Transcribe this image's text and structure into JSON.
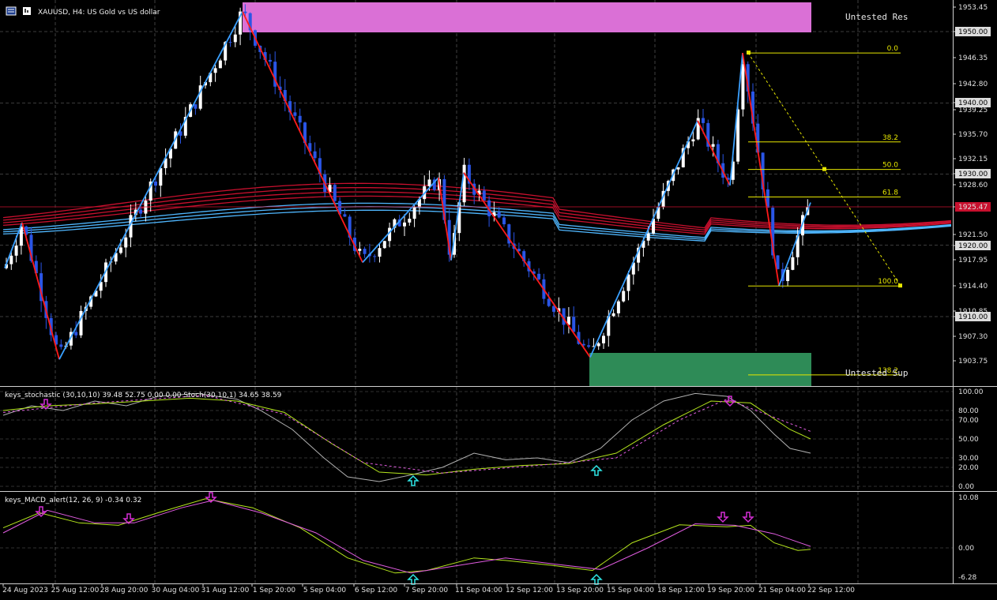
{
  "header": {
    "symbol": "XAUUSD",
    "timeframe": "H4",
    "description": "US Gold vs US dollar",
    "title": "XAUUSD, H4:  US Gold vs US dollar"
  },
  "zones": {
    "resistance_label": "Untested Res",
    "support_label": "Untested Sup",
    "resistance_color": "#da70d6",
    "support_color": "#2e8b57"
  },
  "colors": {
    "bull": "#ffffff",
    "bear": "#2a55e6",
    "zigzag_up": "#3aa0ff",
    "zigzag_down": "#ff1a1a",
    "ema_red": "#c8102e",
    "ema_blue": "#4fb7ff",
    "fib": "#e6e600",
    "stoch_main": "#b0b0b0",
    "stoch_signal": "#b5e61d",
    "macd_signal": "#e05ce0",
    "arrow_up": "#2ee6e6",
    "arrow_down": "#d42ed4",
    "grid": "#d8d8d8"
  },
  "price_axis": {
    "ticks": [
      "1953.45",
      "1950.00",
      "1946.35",
      "1942.80",
      "1940.00",
      "1939.25",
      "1935.70",
      "1932.15",
      "1930.00",
      "1928.60",
      "1925.47",
      "1921.50",
      "1920.00",
      "1917.95",
      "1914.40",
      "1910.85",
      "1910.00",
      "1907.30",
      "1903.75"
    ],
    "boxed": [
      "1950.00",
      "1940.00",
      "1930.00",
      "1925.47",
      "1920.00",
      "1910.00"
    ],
    "current": "1925.47"
  },
  "fibonacci": {
    "levels": [
      "0.0",
      "38.2",
      "50.0",
      "61.8",
      "100.0",
      "138.2"
    ]
  },
  "time_axis": {
    "labels": [
      "24 Aug 2023",
      "25 Aug 12:00",
      "28 Aug 20:00",
      "30 Aug 04:00",
      "31 Aug 12:00",
      "1 Sep 20:00",
      "5 Sep 04:00",
      "6 Sep 12:00",
      "7 Sep 20:00",
      "11 Sep 04:00",
      "12 Sep 12:00",
      "13 Sep 20:00",
      "15 Sep 04:00",
      "18 Sep 12:00",
      "19 Sep 20:00",
      "21 Sep 04:00",
      "22 Sep 12:00"
    ]
  },
  "stochastic": {
    "title": "keys_stochastic (30,10,10) 39.48 52.75 0.00 0.00 Stoch(30,10,1) 34.65 38.59",
    "ticks": [
      "100.00",
      "80.00",
      "70.00",
      "50.00",
      "30.00",
      "20.00",
      "0.00"
    ]
  },
  "macd": {
    "title": "keys_MACD_alert(12, 26, 9) -0.34 0.32",
    "ticks": [
      "10.08",
      "0.00",
      "-6.28"
    ]
  },
  "chart_data": {
    "type": "candlestick",
    "title": "XAUUSD, H4:  US Gold vs US dollar",
    "ylim": [
      1902,
      1955
    ],
    "zigzag_points": [
      {
        "x": "24 Aug 2023",
        "y": 1916.8
      },
      {
        "x": "24 Aug 2023",
        "y": 1923.2
      },
      {
        "x": "25 Aug 12:00",
        "y": 1904.0
      },
      {
        "x": "31 Aug 12:00",
        "y": 1952.8
      },
      {
        "x": "6 Sep 12:00",
        "y": 1917.6
      },
      {
        "x": "7 Sep 20:00",
        "y": 1929.5
      },
      {
        "x": "7 Sep 20:00",
        "y": 1917.9
      },
      {
        "x": "11 Sep 04:00",
        "y": 1930.2
      },
      {
        "x": "13 Sep 20:00",
        "y": 1904.3
      },
      {
        "x": "18 Sep 12:00",
        "y": 1937.5
      },
      {
        "x": "19 Sep 20:00",
        "y": 1928.4
      },
      {
        "x": "19 Sep 20:00",
        "y": 1947.0
      },
      {
        "x": "21 Sep 04:00",
        "y": 1914.3
      },
      {
        "x": "22 Sep 12:00",
        "y": 1926.0
      }
    ],
    "fib_anchor_high": 1947.0,
    "fib_anchor_low": 1914.3,
    "current_price": 1925.47
  }
}
